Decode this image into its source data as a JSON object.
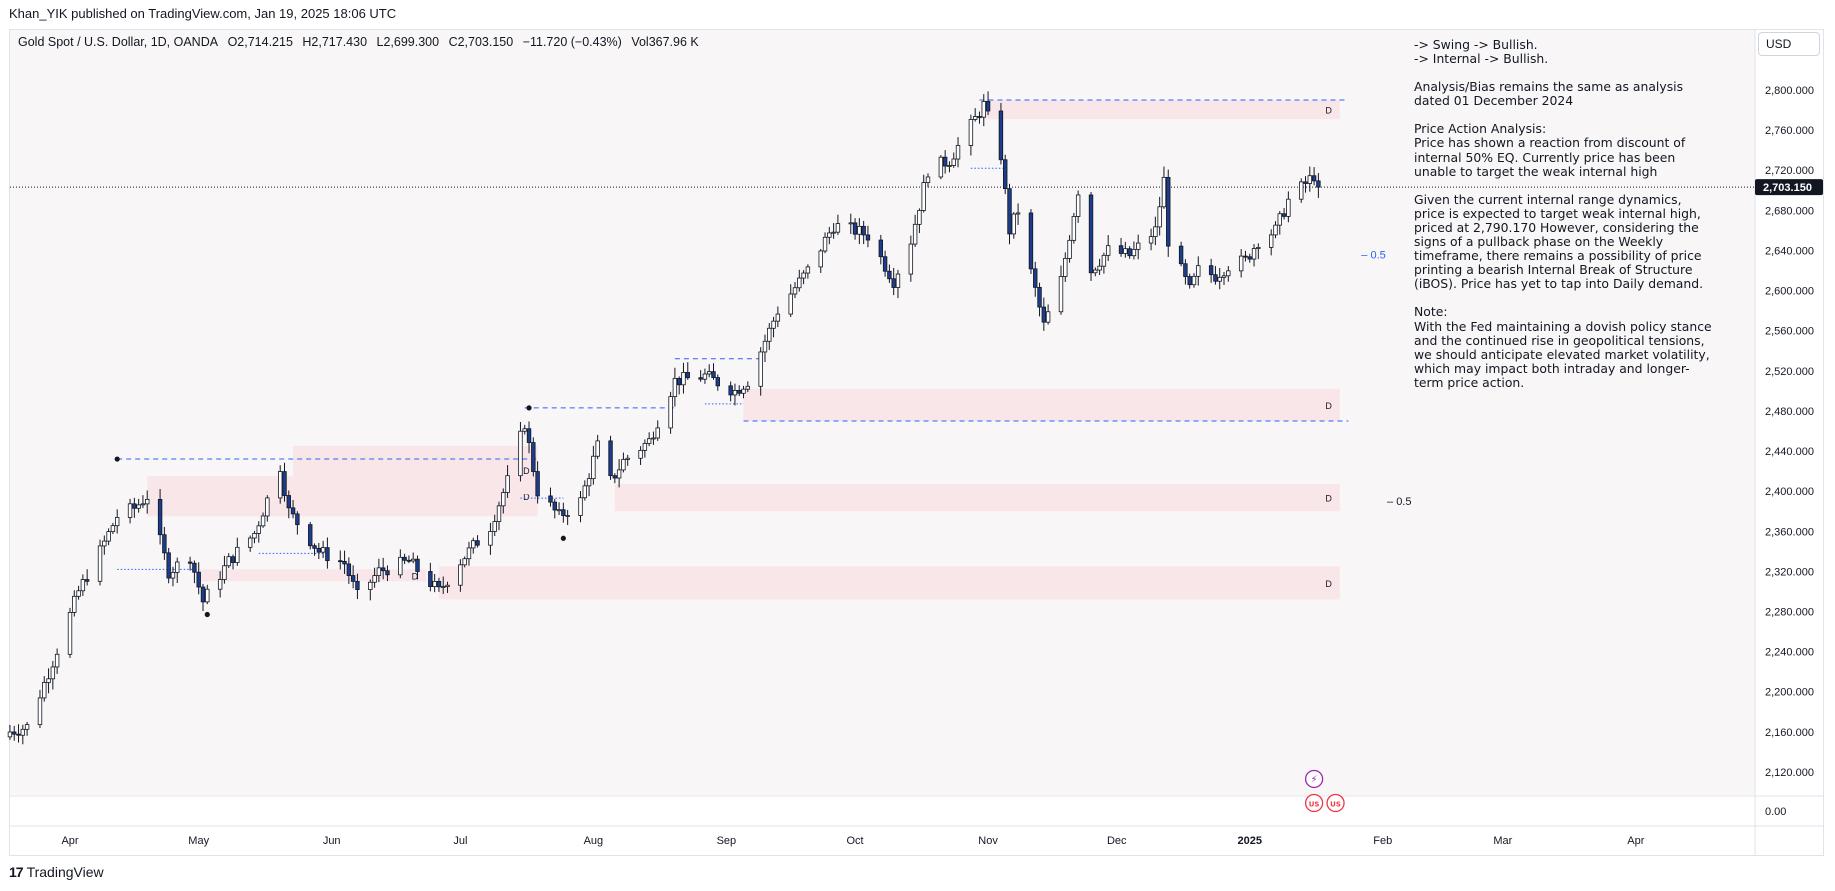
{
  "header": {
    "published": "Khan_YIK published on TradingView.com, Jan 19, 2025 18:06 UTC"
  },
  "symbol": {
    "name": "Gold Spot / U.S. Dollar, 1D, OANDA",
    "open": "O2,714.215",
    "high": "H2,717.430",
    "low": "L2,699.300",
    "close": "C2,703.150",
    "change": "−11.720 (−0.43%)",
    "volume": "Vol367.96 K"
  },
  "currency_button": "USD",
  "last_price_label": "2,703.150",
  "zero_label": "0.00",
  "analysis": {
    "swing": "-> Swing -> Bullish.",
    "internal": "-> Internal -> Bullish.",
    "bias": "Analysis/Bias remains the same as analysis dated 01 December 2024",
    "pa_title": "Price Action Analysis:",
    "pa_text": "Price has shown a reaction from discount of internal 50% EQ.  Currently price has been unable to target the weak internal high",
    "given_text": "Given the current internal range dynamics, price is expected to target weak internal high, priced at 2,790.170  However, considering the signs of a pullback phase on the Weekly timeframe, there remains a possibility of price printing a bearish Internal Break of Structure (iBOS).  Price has yet to tap into Daily demand.",
    "note_title": "Note:",
    "note_text": "With the Fed maintaining a dovish policy stance and the continued rise in geopolitical tensions, we should anticipate elevated market volatility, which may impact both intraday and longer-term price action."
  },
  "footer": {
    "brand": "TradingView",
    "mark": "17"
  },
  "colors": {
    "up": "#ffffff",
    "down": "#1c3c8c",
    "wick": "#131722",
    "zone": "#f9e6e9",
    "dash": "#2962ff",
    "bg": "#f8f6f7"
  },
  "chart_data": {
    "type": "candlestick",
    "symbol": "XAUUSD",
    "timeframe": "1D",
    "ylim": [
      2090,
      2855
    ],
    "y_ticks": [
      2120,
      2160,
      2200,
      2240,
      2280,
      2320,
      2360,
      2400,
      2440,
      2480,
      2520,
      2560,
      2600,
      2640,
      2680,
      2720,
      2760,
      2800
    ],
    "y_tick_labels": [
      "2,120.000",
      "2,160.000",
      "2,200.000",
      "2,240.000",
      "2,280.000",
      "2,320.000",
      "2,360.000",
      "2,400.000",
      "2,440.000",
      "2,480.000",
      "2,520.000",
      "2,560.000",
      "2,600.000",
      "2,640.000",
      "2,680.000",
      "2,720.000",
      "2,760.000",
      "2,800.000"
    ],
    "x_start": "2024-03-18",
    "x_ticks": [
      {
        "label": "Apr",
        "date": "2024-04-01"
      },
      {
        "label": "May",
        "date": "2024-05-01"
      },
      {
        "label": "Jun",
        "date": "2024-06-01"
      },
      {
        "label": "Jul",
        "date": "2024-07-01"
      },
      {
        "label": "Aug",
        "date": "2024-08-01"
      },
      {
        "label": "Sep",
        "date": "2024-09-01"
      },
      {
        "label": "Oct",
        "date": "2024-10-01"
      },
      {
        "label": "Nov",
        "date": "2024-11-01"
      },
      {
        "label": "Dec",
        "date": "2024-12-01"
      },
      {
        "label": "2025",
        "date": "2025-01-01",
        "bold": true
      },
      {
        "label": "Feb",
        "date": "2025-02-01"
      },
      {
        "label": "Mar",
        "date": "2025-03-01"
      },
      {
        "label": "Apr",
        "date": "2025-04-01"
      }
    ],
    "close_path": [
      [
        "2024-03-18",
        2160
      ],
      [
        "2024-03-22",
        2165
      ],
      [
        "2024-03-28",
        2230
      ],
      [
        "2024-04-03",
        2300
      ],
      [
        "2024-04-08",
        2340
      ],
      [
        "2024-04-12",
        2375
      ],
      [
        "2024-04-16",
        2383
      ],
      [
        "2024-04-19",
        2395
      ],
      [
        "2024-04-24",
        2320
      ],
      [
        "2024-04-29",
        2335
      ],
      [
        "2024-05-02",
        2290
      ],
      [
        "2024-05-08",
        2330
      ],
      [
        "2024-05-14",
        2358
      ],
      [
        "2024-05-20",
        2425
      ],
      [
        "2024-05-22",
        2380
      ],
      [
        "2024-05-29",
        2340
      ],
      [
        "2024-06-04",
        2328
      ],
      [
        "2024-06-07",
        2295
      ],
      [
        "2024-06-12",
        2320
      ],
      [
        "2024-06-19",
        2330
      ],
      [
        "2024-06-26",
        2300
      ],
      [
        "2024-07-01",
        2330
      ],
      [
        "2024-07-08",
        2365
      ],
      [
        "2024-07-12",
        2410
      ],
      [
        "2024-07-16",
        2468
      ],
      [
        "2024-07-19",
        2400
      ],
      [
        "2024-07-24",
        2375
      ],
      [
        "2024-07-29",
        2390
      ],
      [
        "2024-08-02",
        2445
      ],
      [
        "2024-08-05",
        2410
      ],
      [
        "2024-08-08",
        2430
      ],
      [
        "2024-08-14",
        2450
      ],
      [
        "2024-08-20",
        2510
      ],
      [
        "2024-08-27",
        2515
      ],
      [
        "2024-09-03",
        2500
      ],
      [
        "2024-09-06",
        2510
      ],
      [
        "2024-09-13",
        2580
      ],
      [
        "2024-09-20",
        2620
      ],
      [
        "2024-09-26",
        2665
      ],
      [
        "2024-10-01",
        2660
      ],
      [
        "2024-10-04",
        2655
      ],
      [
        "2024-10-10",
        2610
      ],
      [
        "2024-10-14",
        2650
      ],
      [
        "2024-10-18",
        2720
      ],
      [
        "2024-10-23",
        2730
      ],
      [
        "2024-10-31",
        2785
      ],
      [
        "2024-11-04",
        2735
      ],
      [
        "2024-11-06",
        2660
      ],
      [
        "2024-11-08",
        2680
      ],
      [
        "2024-11-11",
        2618
      ],
      [
        "2024-11-14",
        2565
      ],
      [
        "2024-11-18",
        2610
      ],
      [
        "2024-11-22",
        2700
      ],
      [
        "2024-11-25",
        2620
      ],
      [
        "2024-11-29",
        2640
      ],
      [
        "2024-12-04",
        2635
      ],
      [
        "2024-12-10",
        2660
      ],
      [
        "2024-12-12",
        2710
      ],
      [
        "2024-12-13",
        2650
      ],
      [
        "2024-12-18",
        2600
      ],
      [
        "2024-12-20",
        2620
      ],
      [
        "2024-12-24",
        2615
      ],
      [
        "2024-12-27",
        2625
      ],
      [
        "2024-12-31",
        2630
      ],
      [
        "2025-01-03",
        2650
      ],
      [
        "2025-01-07",
        2660
      ],
      [
        "2025-01-10",
        2690
      ],
      [
        "2025-01-16",
        2715
      ],
      [
        "2025-01-17",
        2703
      ]
    ],
    "last_price": 2703.15,
    "demand_zones": [
      {
        "from": "2024-04-19",
        "to": "2024-07-19",
        "low": 2375,
        "high": 2415,
        "label": "D"
      },
      {
        "from": "2024-05-23",
        "to": "2024-07-19",
        "low": 2397,
        "high": 2445,
        "label": "D"
      },
      {
        "from": "2024-05-01",
        "to": "2024-06-23",
        "low": 2310,
        "high": 2322,
        "label": "D"
      },
      {
        "from": "2024-06-26",
        "to": "2025-01-22",
        "low": 2292,
        "high": 2325,
        "label": "D"
      },
      {
        "from": "2024-08-06",
        "to": "2025-01-22",
        "low": 2380,
        "high": 2407,
        "label": "D"
      },
      {
        "from": "2024-09-05",
        "to": "2025-01-22",
        "low": 2470,
        "high": 2502,
        "label": "D"
      },
      {
        "from": "2024-10-31",
        "to": "2025-01-22",
        "low": 2771,
        "high": 2790,
        "label": "D"
      }
    ],
    "levels": [
      {
        "from": "2024-04-12",
        "to": "2024-07-19",
        "price": 2432,
        "style": "dashed"
      },
      {
        "from": "2024-07-16",
        "to": "2024-08-20",
        "price": 2483,
        "style": "dashed"
      },
      {
        "from": "2024-08-20",
        "to": "2024-09-10",
        "price": 2532,
        "style": "dashed"
      },
      {
        "from": "2024-10-30",
        "to": "2025-01-24",
        "price": 2790,
        "style": "dashed"
      },
      {
        "from": "2024-09-05",
        "to": "2025-01-24",
        "price": 2470,
        "style": "dashed"
      },
      {
        "from": "2024-04-12",
        "to": "2024-04-30",
        "price": 2322,
        "style": "dotted"
      },
      {
        "from": "2024-05-15",
        "to": "2024-05-31",
        "price": 2338,
        "style": "dotted"
      },
      {
        "from": "2024-07-15",
        "to": "2024-07-25",
        "price": 2393,
        "style": "dotted"
      },
      {
        "from": "2024-08-27",
        "to": "2024-09-05",
        "price": 2487,
        "style": "dotted"
      },
      {
        "from": "2024-10-28",
        "to": "2024-11-05",
        "price": 2722,
        "style": "dotted"
      }
    ],
    "swing_points": [
      {
        "date": "2024-04-12",
        "price": 2432
      },
      {
        "date": "2024-05-03",
        "price": 2277
      },
      {
        "date": "2024-07-17",
        "price": 2483
      },
      {
        "date": "2024-07-25",
        "price": 2353
      }
    ],
    "eq_labels": [
      {
        "date": "2025-01-27",
        "price": 2636,
        "text": "0.5",
        "color": "#2962ff"
      },
      {
        "date": "2025-02-02",
        "price": 2390,
        "text": "0.5",
        "color": "#131722"
      }
    ],
    "event_icons": [
      {
        "date": "2025-01-16",
        "price": 2113,
        "glyph": "⚡",
        "color": "#9c27b0"
      },
      {
        "date": "2025-01-16",
        "price": 2089,
        "glyph": "US",
        "color": "#f23645"
      },
      {
        "date": "2025-01-21",
        "price": 2089,
        "glyph": "US",
        "color": "#f23645"
      }
    ]
  }
}
